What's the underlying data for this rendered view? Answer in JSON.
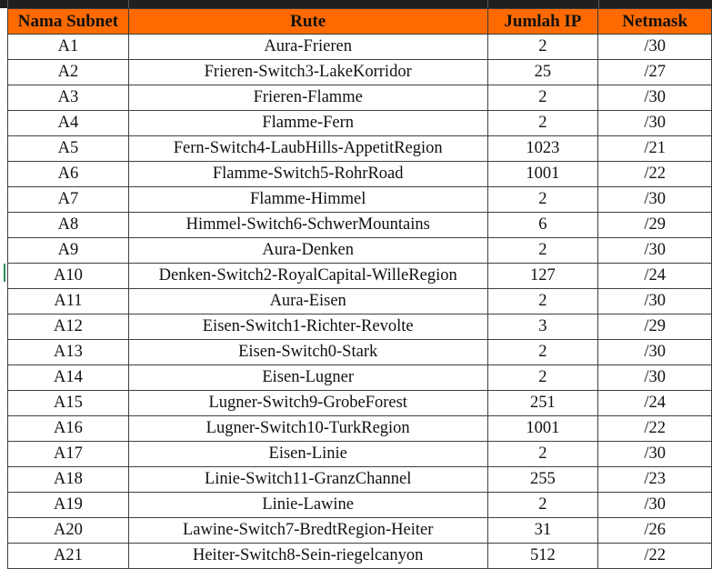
{
  "table": {
    "headers": [
      "Nama Subnet",
      "Rute",
      "Jumlah IP",
      "Netmask"
    ],
    "rows": [
      [
        "A1",
        "Aura-Frieren",
        "2",
        "/30"
      ],
      [
        "A2",
        "Frieren-Switch3-LakeKorridor",
        "25",
        "/27"
      ],
      [
        "A3",
        "Frieren-Flamme",
        "2",
        "/30"
      ],
      [
        "A4",
        "Flamme-Fern",
        "2",
        "/30"
      ],
      [
        "A5",
        "Fern-Switch4-LaubHills-AppetitRegion",
        "1023",
        "/21"
      ],
      [
        "A6",
        "Flamme-Switch5-RohrRoad",
        "1001",
        "/22"
      ],
      [
        "A7",
        "Flamme-Himmel",
        "2",
        "/30"
      ],
      [
        "A8",
        "Himmel-Switch6-SchwerMountains",
        "6",
        "/29"
      ],
      [
        "A9",
        "Aura-Denken",
        "2",
        "/30"
      ],
      [
        "A10",
        "Denken-Switch2-RoyalCapital-WilleRegion",
        "127",
        "/24"
      ],
      [
        "A11",
        "Aura-Eisen",
        "2",
        "/30"
      ],
      [
        "A12",
        "Eisen-Switch1-Richter-Revolte",
        "3",
        "/29"
      ],
      [
        "A13",
        "Eisen-Switch0-Stark",
        "2",
        "/30"
      ],
      [
        "A14",
        "Eisen-Lugner",
        "2",
        "/30"
      ],
      [
        "A15",
        "Lugner-Switch9-GrobeForest",
        "251",
        "/24"
      ],
      [
        "A16",
        "Lugner-Switch10-TurkRegion",
        "1001",
        "/22"
      ],
      [
        "A17",
        "Eisen-Linie",
        "2",
        "/30"
      ],
      [
        "A18",
        "Linie-Switch11-GranzChannel",
        "255",
        "/23"
      ],
      [
        "A19",
        "Linie-Lawine",
        "2",
        "/30"
      ],
      [
        "A20",
        "Lawine-Switch7-BredtRegion-Heiter",
        "31",
        "/26"
      ],
      [
        "A21",
        "Heiter-Switch8-Sein-riegelcanyon",
        "512",
        "/22"
      ]
    ]
  },
  "colors": {
    "header_fill": "#ff6a00",
    "border": "#404040",
    "text": "#111111"
  }
}
